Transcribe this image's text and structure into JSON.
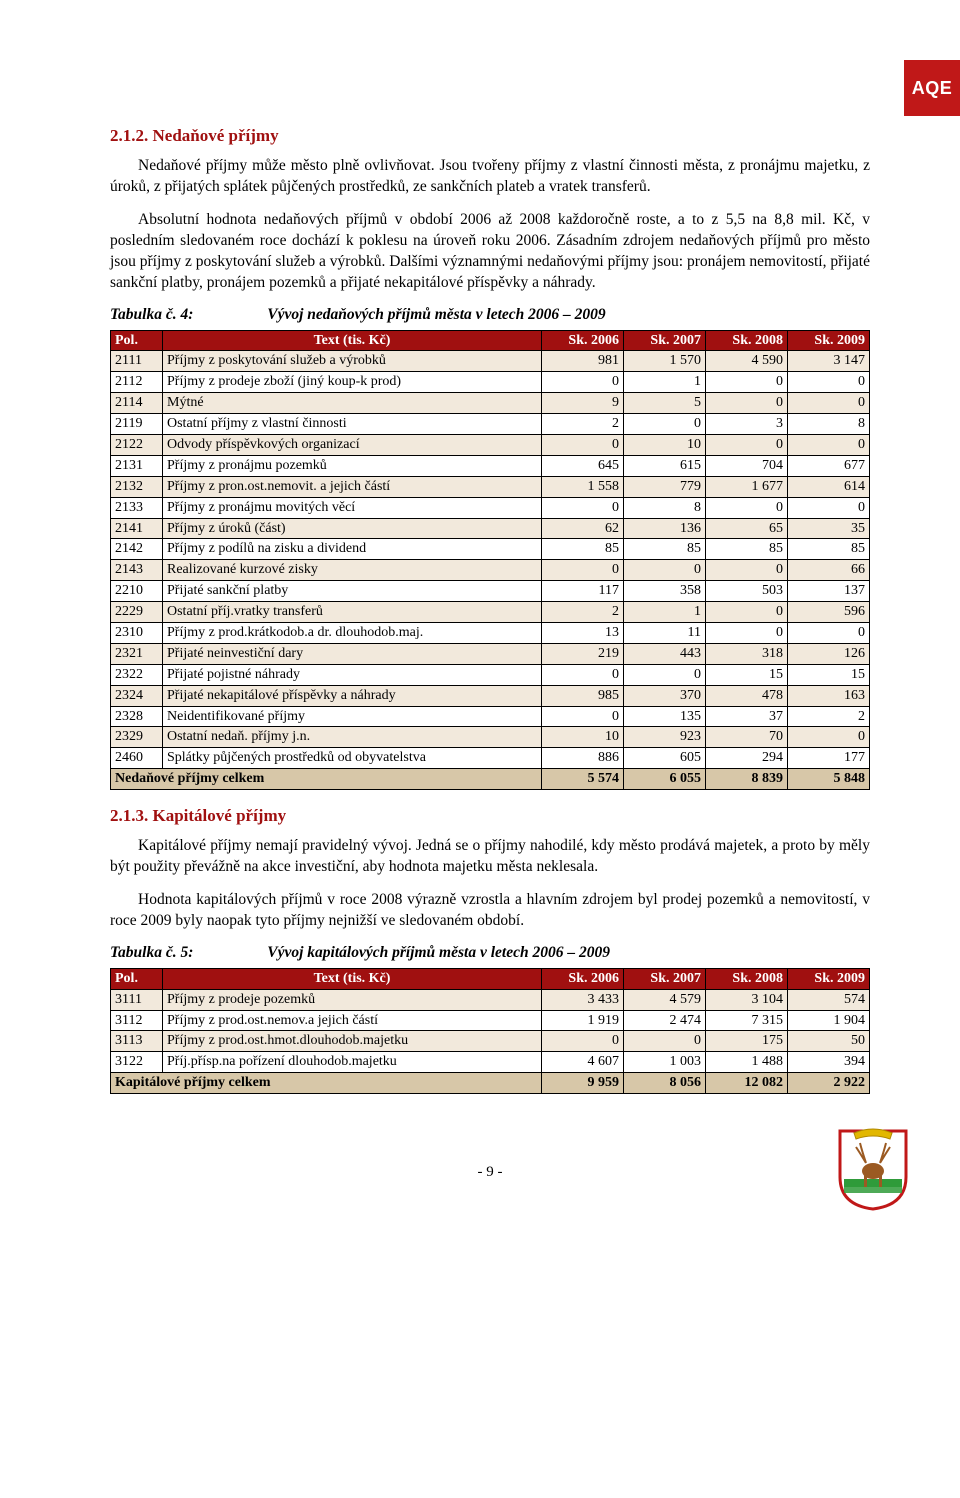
{
  "badge": {
    "text": "AQE",
    "bg": "#c01818"
  },
  "section1": {
    "heading": "2.1.2. Nedaňové příjmy",
    "p1": "Nedaňové příjmy může město plně ovlivňovat. Jsou tvořeny příjmy z vlastní činnosti města, z pronájmu majetku, z úroků, z přijatých splátek půjčených prostředků, ze sankčních plateb a vratek transferů.",
    "p2": "Absolutní hodnota nedaňových příjmů v období 2006 až 2008 každoročně roste, a to z 5,5 na 8,8 mil. Kč, v posledním sledovaném roce dochází k poklesu na úroveň roku 2006. Zásadním zdrojem nedaňových příjmů pro město jsou příjmy z poskytování služeb a výrobků. Dalšími významnými nedaňovými příjmy jsou: pronájem nemovitostí, přijaté sankční platby, pronájem pozemků a přijaté nekapitálové příspěvky a náhrady."
  },
  "table1": {
    "caption_prefix": "Tabulka č. 4:",
    "caption_title": "Vývoj nedaňových příjmů města v letech 2006 – 2009",
    "headers": [
      "Pol.",
      "Text (tis. Kč)",
      "Sk. 2006",
      "Sk. 2007",
      "Sk. 2008",
      "Sk. 2009"
    ],
    "rows": [
      {
        "pol": "2111",
        "text": "Příjmy z poskytování služeb a výrobků",
        "v": [
          "981",
          "1 570",
          "4 590",
          "3 147"
        ]
      },
      {
        "pol": "2112",
        "text": "Příjmy z prodeje zboží (jiný koup-k prod)",
        "v": [
          "0",
          "1",
          "0",
          "0"
        ]
      },
      {
        "pol": "2114",
        "text": "Mýtné",
        "v": [
          "9",
          "5",
          "0",
          "0"
        ]
      },
      {
        "pol": "2119",
        "text": "Ostatní příjmy z vlastní činnosti",
        "v": [
          "2",
          "0",
          "3",
          "8"
        ]
      },
      {
        "pol": "2122",
        "text": "Odvody příspěvkových organizací",
        "v": [
          "0",
          "10",
          "0",
          "0"
        ]
      },
      {
        "pol": "2131",
        "text": "Příjmy z pronájmu pozemků",
        "v": [
          "645",
          "615",
          "704",
          "677"
        ]
      },
      {
        "pol": "2132",
        "text": "Příjmy z pron.ost.nemovit. a jejich částí",
        "v": [
          "1 558",
          "779",
          "1 677",
          "614"
        ]
      },
      {
        "pol": "2133",
        "text": "Příjmy z pronájmu movitých věcí",
        "v": [
          "0",
          "8",
          "0",
          "0"
        ]
      },
      {
        "pol": "2141",
        "text": "Příjmy z úroků (část)",
        "v": [
          "62",
          "136",
          "65",
          "35"
        ]
      },
      {
        "pol": "2142",
        "text": "Příjmy z podílů na zisku a dividend",
        "v": [
          "85",
          "85",
          "85",
          "85"
        ]
      },
      {
        "pol": "2143",
        "text": "Realizované kurzové zisky",
        "v": [
          "0",
          "0",
          "0",
          "66"
        ]
      },
      {
        "pol": "2210",
        "text": "Přijaté sankční platby",
        "v": [
          "117",
          "358",
          "503",
          "137"
        ]
      },
      {
        "pol": "2229",
        "text": "Ostatní příj.vratky transferů",
        "v": [
          "2",
          "1",
          "0",
          "596"
        ]
      },
      {
        "pol": "2310",
        "text": "Příjmy z prod.krátkodob.a dr. dlouhodob.maj.",
        "v": [
          "13",
          "11",
          "0",
          "0"
        ]
      },
      {
        "pol": "2321",
        "text": "Přijaté neinvestiční dary",
        "v": [
          "219",
          "443",
          "318",
          "126"
        ]
      },
      {
        "pol": "2322",
        "text": "Přijaté pojistné náhrady",
        "v": [
          "0",
          "0",
          "15",
          "15"
        ]
      },
      {
        "pol": "2324",
        "text": "Přijaté nekapitálové příspěvky a náhrady",
        "v": [
          "985",
          "370",
          "478",
          "163"
        ]
      },
      {
        "pol": "2328",
        "text": "Neidentifikované příjmy",
        "v": [
          "0",
          "135",
          "37",
          "2"
        ]
      },
      {
        "pol": "2329",
        "text": "Ostatní nedaň. příjmy j.n.",
        "v": [
          "10",
          "923",
          "70",
          "0"
        ]
      },
      {
        "pol": "2460",
        "text": "Splátky půjčených prostředků od obyvatelstva",
        "v": [
          "886",
          "605",
          "294",
          "177"
        ]
      }
    ],
    "total": {
      "label": "Nedaňové příjmy celkem",
      "v": [
        "5 574",
        "6 055",
        "8 839",
        "5 848"
      ]
    }
  },
  "section2": {
    "heading": "2.1.3. Kapitálové příjmy",
    "p1": "Kapitálové příjmy nemají pravidelný vývoj. Jedná se o příjmy nahodilé, kdy město prodává majetek, a proto by měly být použity převážně na akce investiční, aby hodnota majetku města neklesala.",
    "p2": "Hodnota kapitálových příjmů v roce 2008 výrazně vzrostla a hlavním zdrojem byl prodej pozemků a nemovitostí, v roce 2009 byly naopak tyto příjmy nejnižší ve sledovaném období."
  },
  "table2": {
    "caption_prefix": "Tabulka č. 5:",
    "caption_title": "Vývoj kapitálových příjmů města v letech 2006 – 2009",
    "headers": [
      "Pol.",
      "Text (tis. Kč)",
      "Sk. 2006",
      "Sk. 2007",
      "Sk. 2008",
      "Sk. 2009"
    ],
    "rows": [
      {
        "pol": "3111",
        "text": "Příjmy z prodeje pozemků",
        "v": [
          "3 433",
          "4 579",
          "3 104",
          "574"
        ]
      },
      {
        "pol": "3112",
        "text": "Příjmy z prod.ost.nemov.a jejich částí",
        "v": [
          "1 919",
          "2 474",
          "7 315",
          "1 904"
        ]
      },
      {
        "pol": "3113",
        "text": "Příjmy z prod.ost.hmot.dlouhodob.majetku",
        "v": [
          "0",
          "0",
          "175",
          "50"
        ]
      },
      {
        "pol": "3122",
        "text": "Příj.přísp.na pořízení dlouhodob.majetku",
        "v": [
          "4 607",
          "1 003",
          "1 488",
          "394"
        ]
      }
    ],
    "total": {
      "label": "Kapitálové příjmy celkem",
      "v": [
        "9 959",
        "8 056",
        "12 082",
        "2 922"
      ]
    }
  },
  "footer": {
    "page": "- 9 -"
  },
  "crest_colors": {
    "shield_bg": "#ffffff",
    "shield_border": "#c01818",
    "field": "#2f9b3a",
    "deer": "#9b5a22",
    "top": "#e2b700"
  }
}
